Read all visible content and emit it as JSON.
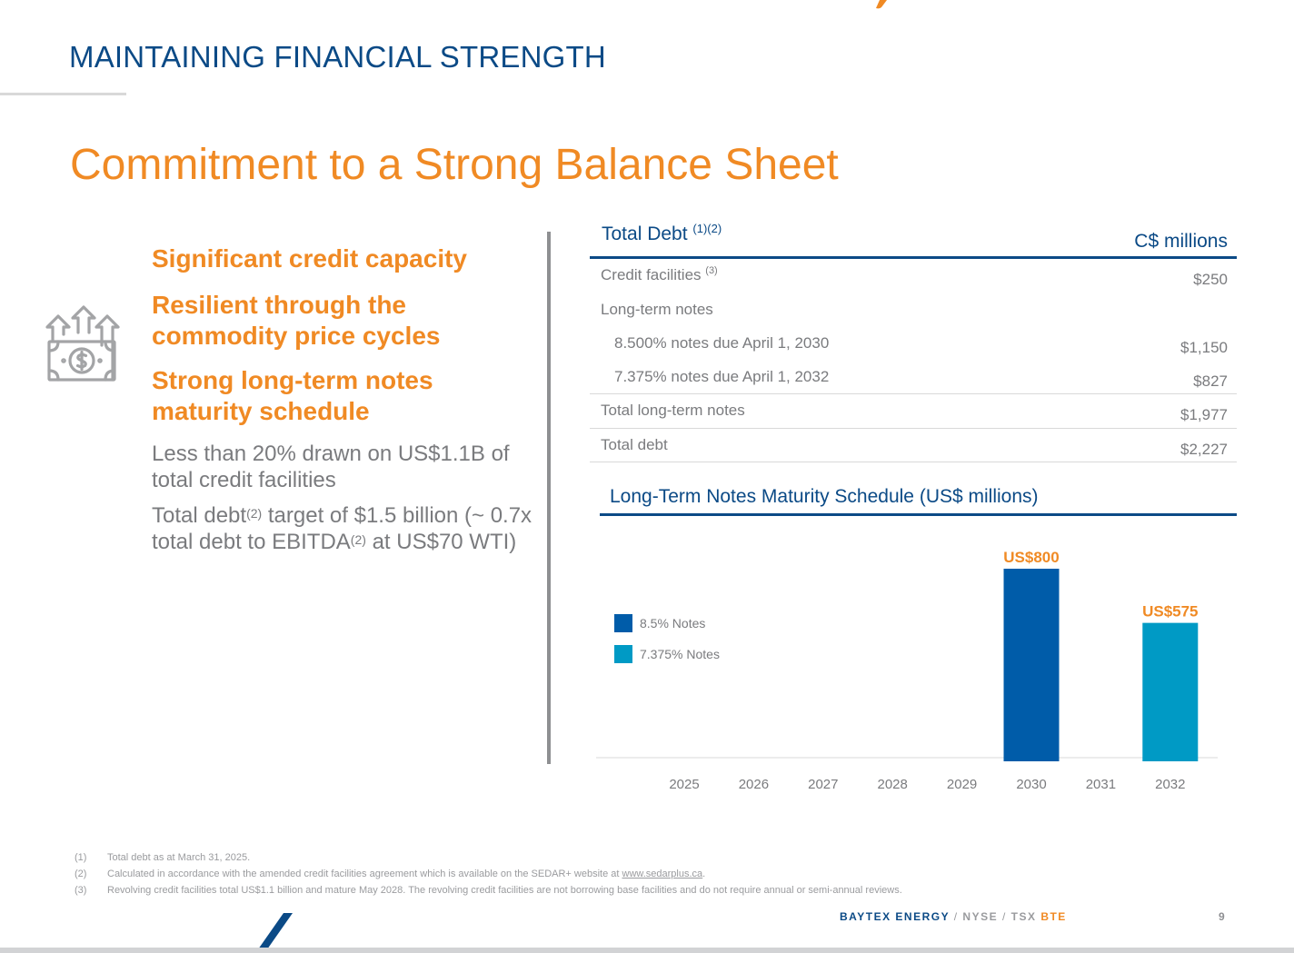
{
  "header": {
    "section_title": "MAINTAINING FINANCIAL STRENGTH",
    "slide_title": "Commitment to a Strong Balance Sheet"
  },
  "highlights": {
    "icon": "money-growth-icon",
    "items": [
      "Significant credit capacity",
      "Resilient through the commodity price cycles",
      "Strong long-term notes maturity schedule"
    ],
    "detail_1": "Less than 20% drawn on US$1.1B of total credit facilities",
    "detail_2": {
      "part_a": "Total debt",
      "sup_a": "(2)",
      "part_b": " target of $1.5 billion (~ 0.7x total debt to EBITDA",
      "sup_b": "(2)",
      "part_c": " at US$70 WTI)"
    }
  },
  "debt_table": {
    "title": "Total Debt",
    "title_sup": "(1)(2)",
    "units": "C$ millions",
    "rows": [
      {
        "label": "Credit facilities",
        "sup": "(3)",
        "value": "$250"
      },
      {
        "label": "Long-term notes",
        "value": ""
      },
      {
        "label": "8.500% notes due April 1, 2030",
        "value": "$1,150"
      },
      {
        "label": "7.375% notes due April 1, 2032",
        "value": "$827"
      },
      {
        "label": "Total long-term notes",
        "value": "$1,977"
      },
      {
        "label": "Total debt",
        "value": "$2,227"
      }
    ]
  },
  "chart_data": {
    "type": "bar",
    "title": "Long-Term Notes Maturity Schedule (US$ millions)",
    "categories": [
      "2025",
      "2026",
      "2027",
      "2028",
      "2029",
      "2030",
      "2031",
      "2032"
    ],
    "series": [
      {
        "name": "8.5% Notes",
        "color": "#005ca9",
        "values": [
          0,
          0,
          0,
          0,
          0,
          800,
          0,
          0
        ]
      },
      {
        "name": "7.375% Notes",
        "color": "#009ac5",
        "values": [
          0,
          0,
          0,
          0,
          0,
          0,
          0,
          575
        ]
      }
    ],
    "data_labels": [
      {
        "category": "2030",
        "text": "US$800"
      },
      {
        "category": "2032",
        "text": "US$575"
      }
    ],
    "label_color": "#f08a24",
    "ylim": [
      0,
      800
    ],
    "grid": false,
    "legend_position": "left"
  },
  "footnotes": [
    {
      "num": "(1)",
      "text": "Total debt as at March 31, 2025."
    },
    {
      "num": "(2)",
      "text": "Calculated in accordance with the amended credit facilities agreement which is available on the SEDAR+ website at ",
      "link": "www.sedarplus.ca",
      "after": "."
    },
    {
      "num": "(3)",
      "text": "Revolving credit facilities total US$1.1 billion and mature May 2028. The revolving credit facilities are not borrowing base facilities and do not require annual or semi-annual reviews."
    }
  ],
  "footer": {
    "company": "BAYTEX ENERGY",
    "sep": "/",
    "exchange_1": "NYSE",
    "exchange_2": "TSX",
    "ticker": "BTE",
    "page": "9"
  },
  "colors": {
    "navy": "#0b4a86",
    "orange": "#f08a24",
    "gray_text": "#7a7b7e"
  }
}
